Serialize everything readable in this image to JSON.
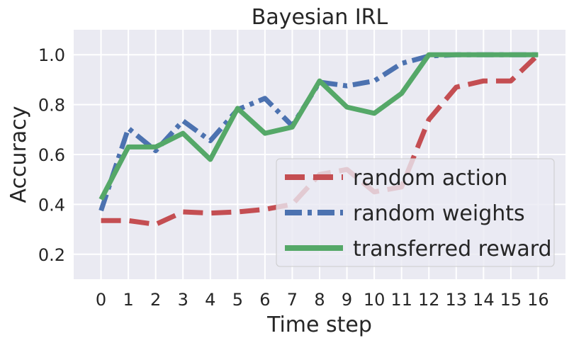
{
  "chart_data": {
    "type": "line",
    "title": "Bayesian IRL",
    "xlabel": "Time step",
    "ylabel": "Accuracy",
    "x": [
      0,
      1,
      2,
      3,
      4,
      5,
      6,
      7,
      8,
      9,
      10,
      11,
      12,
      13,
      14,
      15,
      16
    ],
    "xlim": [
      -1,
      17
    ],
    "ylim": [
      0.1,
      1.1
    ],
    "yticks": [
      0.2,
      0.4,
      0.6,
      0.8,
      1.0
    ],
    "ytick_labels": [
      "0.2",
      "0.4",
      "0.6",
      "0.8",
      "1.0"
    ],
    "grid": true,
    "legend_position": "bottom-right",
    "series": [
      {
        "name": "random action",
        "color": "#c44e52",
        "style": "dashed",
        "values": [
          0.335,
          0.335,
          0.32,
          0.37,
          0.365,
          0.37,
          0.38,
          0.4,
          0.52,
          0.54,
          0.45,
          0.47,
          0.74,
          0.87,
          0.895,
          0.895,
          1.0
        ]
      },
      {
        "name": "random weights",
        "color": "#4c72b0",
        "style": "dashdot",
        "values": [
          0.375,
          0.705,
          0.615,
          0.735,
          0.655,
          0.78,
          0.825,
          0.715,
          0.89,
          0.875,
          0.895,
          0.965,
          0.995,
          1.0,
          1.0,
          1.0,
          1.0
        ]
      },
      {
        "name": "transferred reward",
        "color": "#55a868",
        "style": "solid",
        "values": [
          0.42,
          0.63,
          0.63,
          0.685,
          0.58,
          0.785,
          0.685,
          0.71,
          0.895,
          0.79,
          0.765,
          0.845,
          1.0,
          1.0,
          1.0,
          1.0,
          1.0
        ]
      }
    ]
  }
}
